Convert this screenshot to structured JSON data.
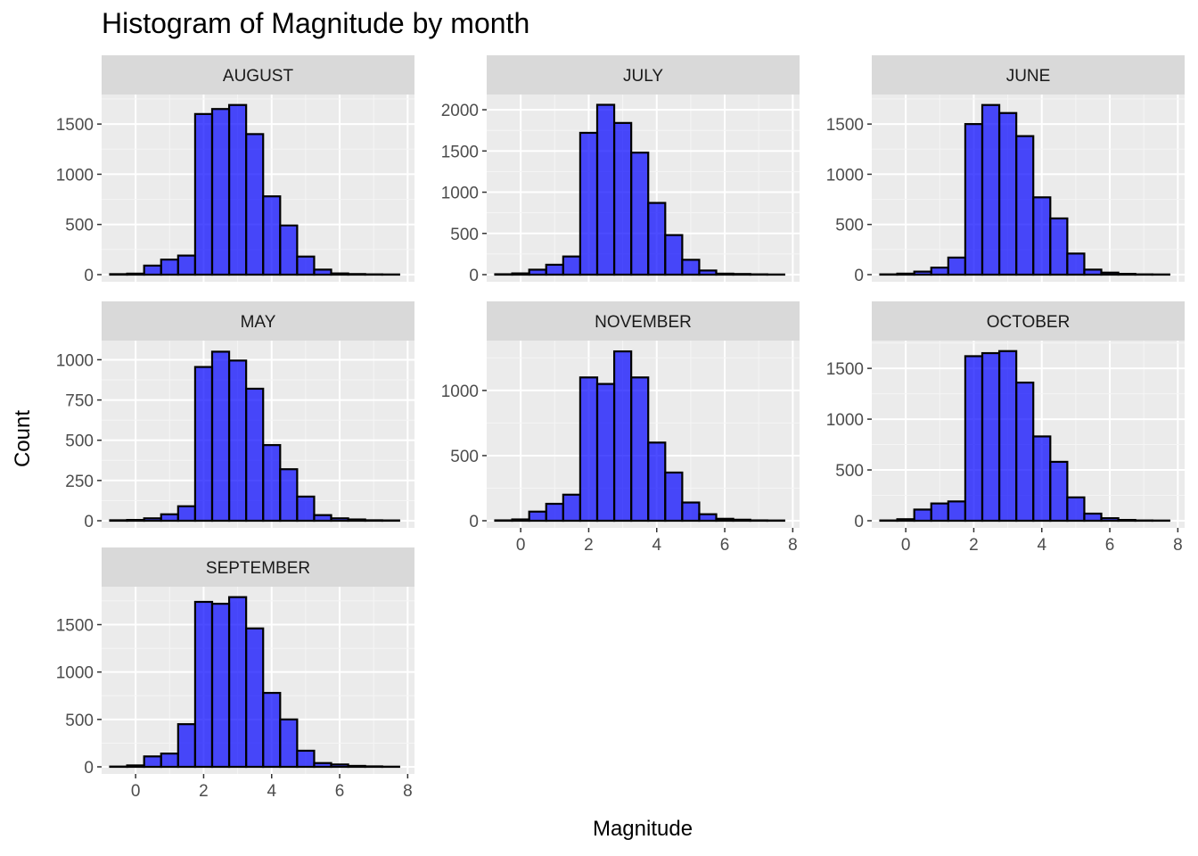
{
  "chart_data": {
    "type": "bar",
    "title": "Histogram of Magnitude by month",
    "xlabel": "Magnitude",
    "ylabel": "Count",
    "grid": true,
    "bar_color": "#0000FF",
    "bar_edge_color": "#000000",
    "panel_background": "#EBEBEB",
    "strip_background": "#D9D9D9",
    "bin_centers": [
      -0.5,
      0.0,
      0.5,
      1.0,
      1.5,
      2.0,
      2.5,
      3.0,
      3.5,
      4.0,
      4.5,
      5.0,
      5.5,
      6.0,
      6.5,
      7.0,
      7.5
    ],
    "xlim": [
      -1.0,
      8.2
    ],
    "x_ticks": [
      "0",
      "2",
      "4",
      "6",
      "8"
    ],
    "x_tick_values": [
      0,
      2,
      4,
      6,
      8
    ],
    "panels": [
      {
        "name": "AUGUST",
        "values": [
          5,
          10,
          90,
          150,
          190,
          1600,
          1650,
          1690,
          1400,
          780,
          490,
          180,
          50,
          12,
          6,
          3,
          2
        ],
        "ylim": [
          0,
          1700
        ],
        "y_ticks": [
          "0",
          "500",
          "1000",
          "1500"
        ],
        "y_tick_values": [
          0,
          500,
          1000,
          1500
        ]
      },
      {
        "name": "JULY",
        "values": [
          5,
          15,
          60,
          120,
          220,
          1720,
          2060,
          1840,
          1480,
          870,
          480,
          180,
          50,
          12,
          8,
          4,
          2
        ],
        "ylim": [
          0,
          2070
        ],
        "y_ticks": [
          "0",
          "500",
          "1000",
          "1500",
          "2000"
        ],
        "y_tick_values": [
          0,
          500,
          1000,
          1500,
          2000
        ]
      },
      {
        "name": "JUNE",
        "values": [
          3,
          10,
          30,
          70,
          170,
          1500,
          1690,
          1610,
          1380,
          770,
          560,
          210,
          50,
          20,
          8,
          3,
          2
        ],
        "ylim": [
          0,
          1700
        ],
        "y_ticks": [
          "0",
          "500",
          "1000",
          "1500"
        ],
        "y_tick_values": [
          0,
          500,
          1000,
          1500
        ]
      },
      {
        "name": "MAY",
        "values": [
          3,
          5,
          15,
          40,
          90,
          955,
          1050,
          995,
          820,
          470,
          320,
          150,
          35,
          15,
          8,
          3,
          2
        ],
        "ylim": [
          0,
          1060
        ],
        "y_ticks": [
          "0",
          "250",
          "500",
          "750",
          "1000"
        ],
        "y_tick_values": [
          0,
          250,
          500,
          750,
          1000
        ]
      },
      {
        "name": "NOVEMBER",
        "values": [
          3,
          10,
          70,
          130,
          200,
          1100,
          1050,
          1300,
          1100,
          600,
          370,
          140,
          50,
          15,
          8,
          3,
          2
        ],
        "ylim": [
          0,
          1310
        ],
        "y_ticks": [
          "0",
          "500",
          "1000"
        ],
        "y_tick_values": [
          0,
          500,
          1000
        ]
      },
      {
        "name": "OCTOBER",
        "values": [
          3,
          15,
          110,
          170,
          190,
          1620,
          1650,
          1670,
          1360,
          830,
          580,
          230,
          70,
          25,
          8,
          3,
          2
        ],
        "ylim": [
          0,
          1680
        ],
        "y_ticks": [
          "0",
          "500",
          "1000",
          "1500"
        ],
        "y_tick_values": [
          0,
          500,
          1000,
          1500
        ]
      },
      {
        "name": "SEPTEMBER",
        "values": [
          3,
          15,
          110,
          140,
          450,
          1740,
          1720,
          1790,
          1460,
          780,
          500,
          170,
          40,
          25,
          10,
          5,
          2
        ],
        "ylim": [
          0,
          1800
        ],
        "y_ticks": [
          "0",
          "500",
          "1000",
          "1500"
        ],
        "y_tick_values": [
          0,
          500,
          1000,
          1500
        ]
      }
    ]
  }
}
